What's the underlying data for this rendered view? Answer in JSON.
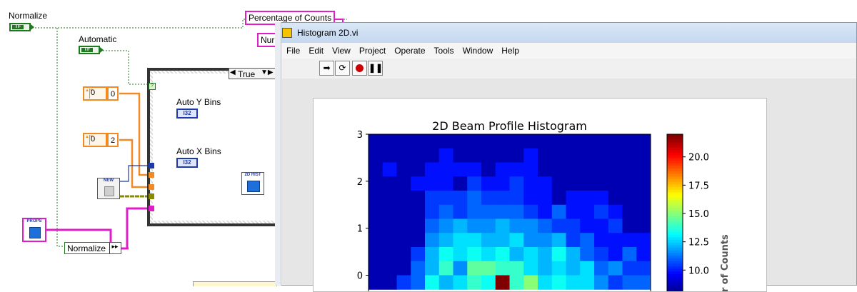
{
  "diagram": {
    "labels": {
      "normalize_top": "Normalize",
      "automatic": "Automatic",
      "auto_y_bins": "Auto Y Bins",
      "auto_x_bins": "Auto X Bins",
      "percentage_of_counts": "Percentage of Counts",
      "num_partial": "Nur",
      "normalize_bottom": "Normalize"
    },
    "bool_text": "TF",
    "num_controls": [
      {
        "spin_value": "0",
        "value": "0"
      },
      {
        "spin_value": "0",
        "value": "2"
      }
    ],
    "i32_text": "I32",
    "case_selector": "True",
    "nodes": {
      "new": "NEW",
      "hist": "2D HIST",
      "props": "PROPS"
    },
    "colors": {
      "boolean": "#1f7a1f",
      "numeric": "#f08a24",
      "integer": "#1e3aa8",
      "cluster": "#e01ec8",
      "wire_olive": "#8a8a00"
    }
  },
  "window": {
    "title": "Histogram 2D.vi",
    "menu": [
      "File",
      "Edit",
      "View",
      "Project",
      "Operate",
      "Tools",
      "Window",
      "Help"
    ],
    "toolbar": [
      "run-arrow-icon",
      "run-continuously-icon",
      "abort-icon",
      "pause-icon"
    ]
  },
  "chart_data": {
    "type": "heatmap",
    "title": "2D Beam Profile Histogram",
    "y_ticks": [
      "3",
      "2",
      "1",
      "0"
    ],
    "ylim": [
      -0.3,
      3
    ],
    "colorbar": {
      "ticks": [
        "20.0",
        "17.5",
        "15.0",
        "12.5",
        "10.0"
      ],
      "label": "er of Counts",
      "range": [
        8,
        22
      ]
    },
    "grid_rows": [
      [
        0,
        0,
        0,
        0,
        0,
        0,
        0,
        0,
        0,
        0,
        0,
        0,
        0,
        0,
        0,
        0,
        0,
        0,
        0,
        0
      ],
      [
        0,
        0,
        0,
        0,
        0,
        1,
        0,
        0,
        0,
        0,
        0,
        1,
        0,
        0,
        0,
        0,
        0,
        0,
        0,
        0
      ],
      [
        0,
        1,
        0,
        0,
        1,
        1,
        1,
        1,
        0,
        1,
        1,
        1,
        0,
        0,
        0,
        0,
        0,
        0,
        0,
        0
      ],
      [
        0,
        0,
        0,
        1,
        1,
        1,
        0,
        2,
        1,
        1,
        2,
        1,
        1,
        0,
        0,
        0,
        0,
        0,
        0,
        0
      ],
      [
        0,
        0,
        0,
        0,
        2,
        2,
        2,
        3,
        2,
        2,
        2,
        1,
        1,
        0,
        1,
        1,
        1,
        0,
        0,
        0
      ],
      [
        0,
        0,
        0,
        0,
        2,
        3,
        2,
        3,
        3,
        3,
        3,
        2,
        1,
        3,
        1,
        1,
        2,
        1,
        0,
        0
      ],
      [
        0,
        0,
        0,
        0,
        3,
        4,
        5,
        4,
        4,
        5,
        4,
        4,
        3,
        2,
        2,
        1,
        1,
        2,
        0,
        0
      ],
      [
        0,
        0,
        0,
        0,
        4,
        5,
        6,
        6,
        5,
        5,
        6,
        4,
        4,
        5,
        2,
        3,
        1,
        1,
        1,
        1
      ],
      [
        0,
        0,
        0,
        2,
        5,
        7,
        6,
        7,
        6,
        7,
        5,
        6,
        5,
        7,
        5,
        3,
        2,
        1,
        3,
        1
      ],
      [
        0,
        0,
        0,
        3,
        5,
        8,
        4,
        9,
        9,
        8,
        8,
        6,
        5,
        6,
        5,
        6,
        3,
        4,
        2,
        2
      ],
      [
        0,
        0,
        2,
        3,
        7,
        5,
        6,
        8,
        7,
        22,
        8,
        10,
        6,
        7,
        6,
        6,
        4,
        2,
        3,
        3
      ]
    ]
  }
}
